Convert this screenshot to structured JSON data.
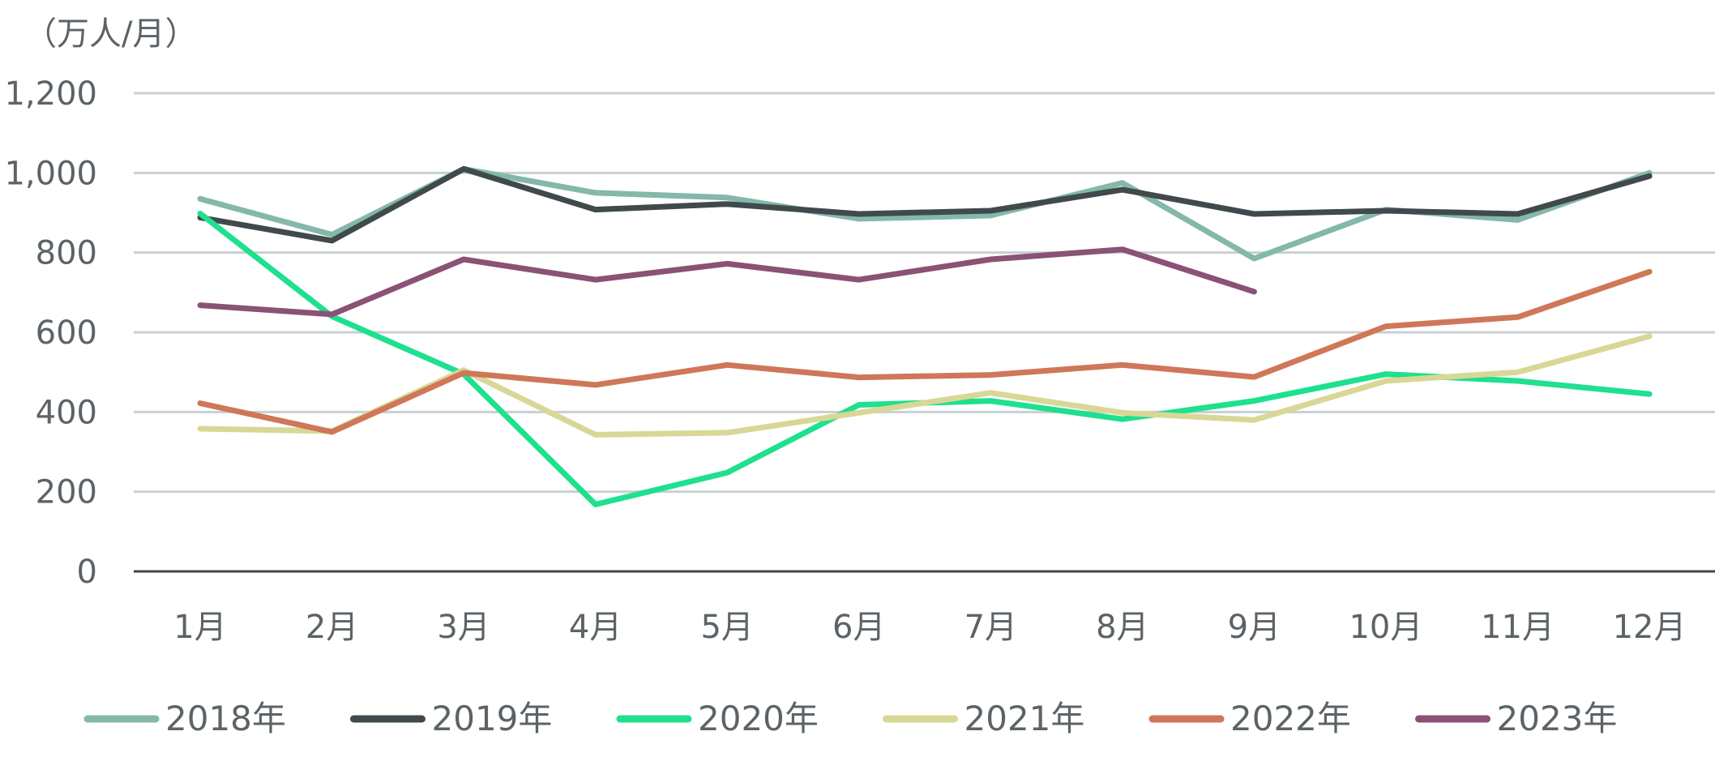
{
  "chart_data": {
    "type": "line",
    "title": "",
    "unit_label": "（万人/月）",
    "xlabel": "",
    "ylabel": "",
    "categories": [
      "1月",
      "2月",
      "3月",
      "4月",
      "5月",
      "6月",
      "7月",
      "8月",
      "9月",
      "10月",
      "11月",
      "12月"
    ],
    "ylim": [
      0,
      1200
    ],
    "yticks": [
      0,
      200,
      400,
      600,
      800,
      1000,
      1200
    ],
    "ytick_labels": [
      "0",
      "200",
      "400",
      "600",
      "800",
      "1,000",
      "1,200"
    ],
    "grid": true,
    "legend_position": "bottom",
    "series": [
      {
        "name": "2018年",
        "color": "#84b8a8",
        "values": [
          935,
          845,
          1010,
          950,
          938,
          885,
          893,
          975,
          785,
          908,
          882,
          1000
        ]
      },
      {
        "name": "2019年",
        "color": "#404a4c",
        "values": [
          888,
          830,
          1010,
          908,
          922,
          897,
          905,
          958,
          897,
          905,
          897,
          992
        ]
      },
      {
        "name": "2020年",
        "color": "#1ee08e",
        "values": [
          898,
          640,
          495,
          168,
          248,
          418,
          428,
          382,
          428,
          495,
          478,
          445
        ]
      },
      {
        "name": "2021年",
        "color": "#d9d796",
        "values": [
          358,
          352,
          505,
          343,
          348,
          398,
          448,
          398,
          380,
          478,
          500,
          590
        ]
      },
      {
        "name": "2022年",
        "color": "#cf7758",
        "values": [
          422,
          350,
          498,
          468,
          518,
          487,
          493,
          518,
          488,
          615,
          638,
          752
        ]
      },
      {
        "name": "2023年",
        "color": "#8a5275",
        "values": [
          668,
          645,
          783,
          732,
          772,
          732,
          783,
          808,
          702,
          null,
          null,
          null
        ]
      }
    ]
  }
}
